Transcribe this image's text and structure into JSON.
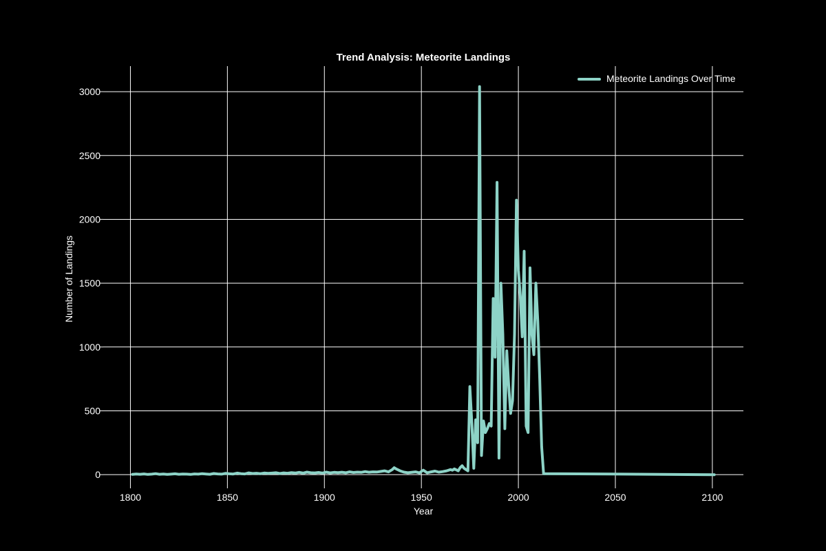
{
  "chart_data": {
    "type": "line",
    "title": "Trend Analysis: Meteorite Landings",
    "xlabel": "Year",
    "ylabel": "Number of Landings",
    "xlim": [
      1786,
      2116
    ],
    "ylim": [
      -80,
      3200
    ],
    "xticks": [
      1800,
      1850,
      1900,
      1950,
      2000,
      2050,
      2100
    ],
    "yticks": [
      0,
      500,
      1000,
      1500,
      2000,
      2500,
      3000
    ],
    "grid": true,
    "legend_position": "top-right",
    "series": [
      {
        "name": "Meteorite Landings Over Time",
        "color": "#8dd3c7",
        "x": [
          1801,
          1803,
          1805,
          1807,
          1809,
          1811,
          1813,
          1815,
          1817,
          1819,
          1821,
          1823,
          1825,
          1827,
          1829,
          1831,
          1833,
          1835,
          1837,
          1839,
          1841,
          1843,
          1845,
          1847,
          1849,
          1851,
          1853,
          1855,
          1857,
          1859,
          1861,
          1863,
          1865,
          1867,
          1869,
          1871,
          1873,
          1875,
          1877,
          1879,
          1881,
          1883,
          1885,
          1887,
          1889,
          1891,
          1893,
          1895,
          1897,
          1899,
          1901,
          1903,
          1905,
          1907,
          1909,
          1911,
          1913,
          1915,
          1917,
          1919,
          1921,
          1923,
          1925,
          1927,
          1929,
          1931,
          1933,
          1935,
          1936,
          1937,
          1939,
          1941,
          1943,
          1945,
          1947,
          1949,
          1950,
          1951,
          1953,
          1955,
          1957,
          1959,
          1961,
          1963,
          1965,
          1966,
          1967,
          1969,
          1970,
          1971,
          1972,
          1973,
          1974,
          1975,
          1976,
          1977,
          1978,
          1979,
          1980,
          1981,
          1982,
          1983,
          1984,
          1985,
          1986,
          1987,
          1988,
          1989,
          1990,
          1991,
          1992,
          1993,
          1994,
          1995,
          1996,
          1997,
          1998,
          1999,
          2000,
          2001,
          2002,
          2003,
          2004,
          2005,
          2006,
          2007,
          2008,
          2009,
          2010,
          2011,
          2012,
          2013,
          2101
        ],
        "y": [
          2,
          5,
          3,
          6,
          2,
          4,
          8,
          3,
          5,
          2,
          4,
          7,
          3,
          5,
          4,
          2,
          6,
          4,
          8,
          5,
          3,
          9,
          6,
          4,
          10,
          7,
          5,
          12,
          8,
          6,
          14,
          9,
          11,
          8,
          13,
          10,
          12,
          15,
          9,
          14,
          11,
          16,
          13,
          18,
          12,
          20,
          15,
          14,
          17,
          13,
          20,
          14,
          18,
          16,
          19,
          15,
          22,
          17,
          20,
          18,
          24,
          19,
          22,
          21,
          25,
          30,
          22,
          40,
          55,
          45,
          30,
          20,
          15,
          18,
          22,
          14,
          25,
          35,
          15,
          22,
          28,
          20,
          24,
          30,
          40,
          35,
          45,
          30,
          55,
          70,
          50,
          40,
          30,
          690,
          400,
          50,
          430,
          250,
          3040,
          150,
          420,
          330,
          360,
          400,
          380,
          1380,
          920,
          2290,
          130,
          1500,
          1100,
          360,
          970,
          700,
          480,
          580,
          1100,
          2150,
          1600,
          1400,
          1080,
          1750,
          380,
          330,
          1620,
          1100,
          940,
          1500,
          1200,
          750,
          220,
          8,
          0
        ]
      }
    ]
  }
}
